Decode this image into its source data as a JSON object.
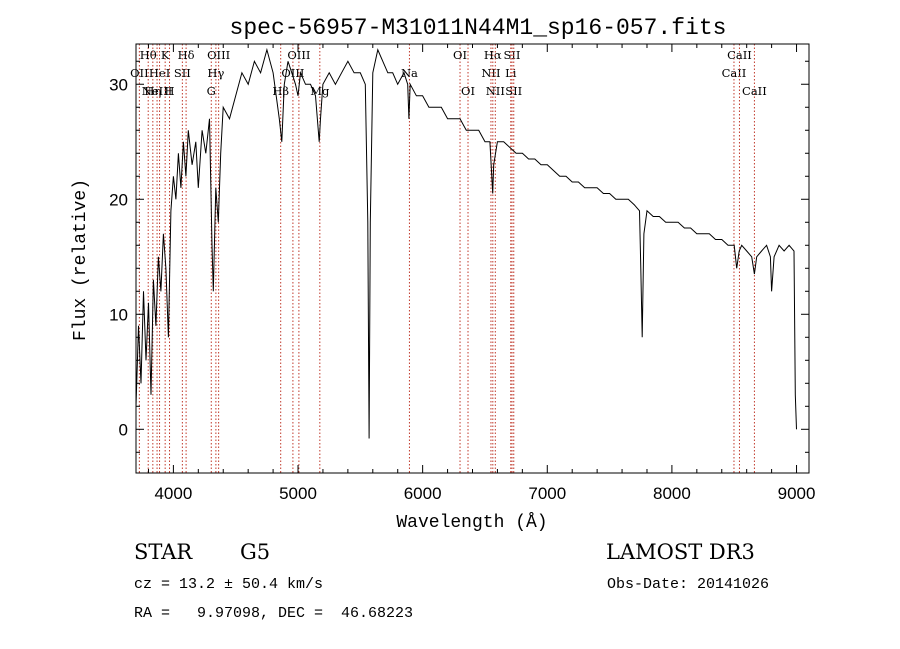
{
  "chart_data": {
    "type": "line",
    "title": "spec-56957-M31011N44M1_sp16-057.fits",
    "xlabel": "Wavelength (Å)",
    "ylabel": "Flux (relative)",
    "xlim": [
      3700,
      9100
    ],
    "ylim": [
      -3.8,
      33.5
    ],
    "x_ticks": [
      4000,
      5000,
      6000,
      7000,
      8000,
      9000
    ],
    "y_ticks": [
      0,
      10,
      20,
      30
    ],
    "grid": false,
    "series": [
      {
        "name": "flux",
        "color": "#000000",
        "points": [
          [
            3700,
            2
          ],
          [
            3720,
            9
          ],
          [
            3740,
            4
          ],
          [
            3760,
            12
          ],
          [
            3780,
            6
          ],
          [
            3800,
            11
          ],
          [
            3820,
            3
          ],
          [
            3840,
            13
          ],
          [
            3860,
            9
          ],
          [
            3880,
            15
          ],
          [
            3900,
            12
          ],
          [
            3920,
            17
          ],
          [
            3940,
            14
          ],
          [
            3960,
            8
          ],
          [
            3980,
            19
          ],
          [
            4000,
            22
          ],
          [
            4020,
            20
          ],
          [
            4040,
            24
          ],
          [
            4060,
            21
          ],
          [
            4080,
            25
          ],
          [
            4100,
            22
          ],
          [
            4120,
            26
          ],
          [
            4150,
            23
          ],
          [
            4180,
            25
          ],
          [
            4200,
            21
          ],
          [
            4230,
            26
          ],
          [
            4260,
            24
          ],
          [
            4290,
            27
          ],
          [
            4310,
            16
          ],
          [
            4320,
            12
          ],
          [
            4340,
            21
          ],
          [
            4360,
            18
          ],
          [
            4380,
            24
          ],
          [
            4400,
            28
          ],
          [
            4450,
            27
          ],
          [
            4500,
            29
          ],
          [
            4550,
            31
          ],
          [
            4600,
            30
          ],
          [
            4650,
            32
          ],
          [
            4700,
            31
          ],
          [
            4750,
            33
          ],
          [
            4800,
            31
          ],
          [
            4850,
            27
          ],
          [
            4870,
            25
          ],
          [
            4890,
            30
          ],
          [
            4920,
            32
          ],
          [
            4950,
            31
          ],
          [
            4980,
            30
          ],
          [
            5000,
            29
          ],
          [
            5020,
            31
          ],
          [
            5060,
            30
          ],
          [
            5100,
            30
          ],
          [
            5140,
            29
          ],
          [
            5170,
            25
          ],
          [
            5180,
            27
          ],
          [
            5200,
            30
          ],
          [
            5250,
            31
          ],
          [
            5300,
            30
          ],
          [
            5350,
            31
          ],
          [
            5400,
            32
          ],
          [
            5450,
            31
          ],
          [
            5500,
            31
          ],
          [
            5540,
            30
          ],
          [
            5560,
            18
          ],
          [
            5570,
            -0.8
          ],
          [
            5580,
            18
          ],
          [
            5600,
            31
          ],
          [
            5640,
            33
          ],
          [
            5680,
            32
          ],
          [
            5720,
            31
          ],
          [
            5760,
            31
          ],
          [
            5800,
            30
          ],
          [
            5850,
            31
          ],
          [
            5880,
            30
          ],
          [
            5890,
            27
          ],
          [
            5900,
            30
          ],
          [
            5950,
            29
          ],
          [
            6000,
            29
          ],
          [
            6050,
            28
          ],
          [
            6100,
            28
          ],
          [
            6150,
            28
          ],
          [
            6200,
            27
          ],
          [
            6250,
            27
          ],
          [
            6300,
            27
          ],
          [
            6350,
            26
          ],
          [
            6400,
            26
          ],
          [
            6450,
            26
          ],
          [
            6500,
            25
          ],
          [
            6540,
            25
          ],
          [
            6555,
            22
          ],
          [
            6562,
            20.5
          ],
          [
            6570,
            23
          ],
          [
            6600,
            25
          ],
          [
            6650,
            25
          ],
          [
            6700,
            24.5
          ],
          [
            6750,
            24
          ],
          [
            6800,
            24
          ],
          [
            6850,
            23.5
          ],
          [
            6900,
            23.5
          ],
          [
            6950,
            23
          ],
          [
            7000,
            23
          ],
          [
            7050,
            22.5
          ],
          [
            7100,
            22
          ],
          [
            7150,
            22
          ],
          [
            7200,
            21.5
          ],
          [
            7250,
            21.5
          ],
          [
            7300,
            21
          ],
          [
            7350,
            21
          ],
          [
            7400,
            21
          ],
          [
            7450,
            20.5
          ],
          [
            7500,
            20.5
          ],
          [
            7550,
            20
          ],
          [
            7600,
            20
          ],
          [
            7650,
            20
          ],
          [
            7700,
            19.5
          ],
          [
            7740,
            19
          ],
          [
            7750,
            14
          ],
          [
            7762,
            8
          ],
          [
            7775,
            17
          ],
          [
            7800,
            19
          ],
          [
            7850,
            18.5
          ],
          [
            7900,
            18.5
          ],
          [
            7950,
            18
          ],
          [
            8000,
            18
          ],
          [
            8050,
            18
          ],
          [
            8100,
            17.5
          ],
          [
            8150,
            17.5
          ],
          [
            8200,
            17
          ],
          [
            8250,
            17
          ],
          [
            8300,
            17
          ],
          [
            8350,
            16.5
          ],
          [
            8400,
            16.5
          ],
          [
            8450,
            16
          ],
          [
            8500,
            16
          ],
          [
            8520,
            14
          ],
          [
            8540,
            15.5
          ],
          [
            8560,
            16
          ],
          [
            8600,
            15.5
          ],
          [
            8640,
            15
          ],
          [
            8662,
            13.5
          ],
          [
            8680,
            15
          ],
          [
            8720,
            15.5
          ],
          [
            8760,
            16
          ],
          [
            8790,
            15
          ],
          [
            8800,
            12
          ],
          [
            8820,
            15
          ],
          [
            8860,
            16
          ],
          [
            8900,
            15.5
          ],
          [
            8940,
            16
          ],
          [
            8980,
            15.5
          ],
          [
            8990,
            3
          ],
          [
            9000,
            0
          ]
        ]
      }
    ],
    "lines": [
      {
        "x": 3727,
        "labels": [
          "OII"
        ],
        "row": 1
      },
      {
        "x": 3798,
        "labels": [
          "Hθ"
        ],
        "row": 0
      },
      {
        "x": 3835,
        "labels": [
          "Hη"
        ],
        "row": 2
      },
      {
        "x": 3869,
        "labels": [
          "NeIII"
        ],
        "row": 2
      },
      {
        "x": 3889,
        "labels": [
          "HeI"
        ],
        "row": 1
      },
      {
        "x": 3934,
        "labels": [
          "K"
        ],
        "row": 0
      },
      {
        "x": 3969,
        "labels": [
          "H"
        ],
        "row": 2
      },
      {
        "x": 4072,
        "labels": [
          "SII"
        ],
        "row": 1
      },
      {
        "x": 4102,
        "labels": [
          "Hδ"
        ],
        "row": 0
      },
      {
        "x": 4304,
        "labels": [
          "G"
        ],
        "row": 2
      },
      {
        "x": 4341,
        "labels": [
          "Hγ"
        ],
        "row": 1
      },
      {
        "x": 4363,
        "labels": [
          "OIII"
        ],
        "row": 0
      },
      {
        "x": 4861,
        "labels": [
          "Hβ"
        ],
        "row": 2
      },
      {
        "x": 4959,
        "labels": [
          "OIII"
        ],
        "row": 1
      },
      {
        "x": 5007,
        "labels": [
          "OIII"
        ],
        "row": 0
      },
      {
        "x": 5175,
        "labels": [
          "Mg"
        ],
        "row": 2
      },
      {
        "x": 5894,
        "labels": [
          "Na"
        ],
        "row": 1
      },
      {
        "x": 6300,
        "labels": [
          "OI"
        ],
        "row": 0
      },
      {
        "x": 6364,
        "labels": [
          "OI"
        ],
        "row": 2
      },
      {
        "x": 6548,
        "labels": [
          "NII"
        ],
        "row": 1
      },
      {
        "x": 6563,
        "labels": [
          "Hα"
        ],
        "row": 0
      },
      {
        "x": 6583,
        "labels": [
          "NII"
        ],
        "row": 2
      },
      {
        "x": 6707,
        "labels": [
          "Li"
        ],
        "row": 1
      },
      {
        "x": 6717,
        "labels": [
          "SII"
        ],
        "row": 0
      },
      {
        "x": 6731,
        "labels": [
          "SII"
        ],
        "row": 2
      },
      {
        "x": 8498,
        "labels": [
          "CaII"
        ],
        "row": 1
      },
      {
        "x": 8542,
        "labels": [
          "CaII"
        ],
        "row": 0
      },
      {
        "x": 8662,
        "labels": [
          "CaII"
        ],
        "row": 2
      }
    ]
  },
  "info": {
    "class": "STAR",
    "subclass": "G5",
    "survey": "LAMOST DR3",
    "cz": "cz = 13.2 ± 50.4 km/s",
    "obs_date": "Obs-Date: 20141026",
    "radec": "RA =   9.97098, DEC =  46.68223"
  }
}
